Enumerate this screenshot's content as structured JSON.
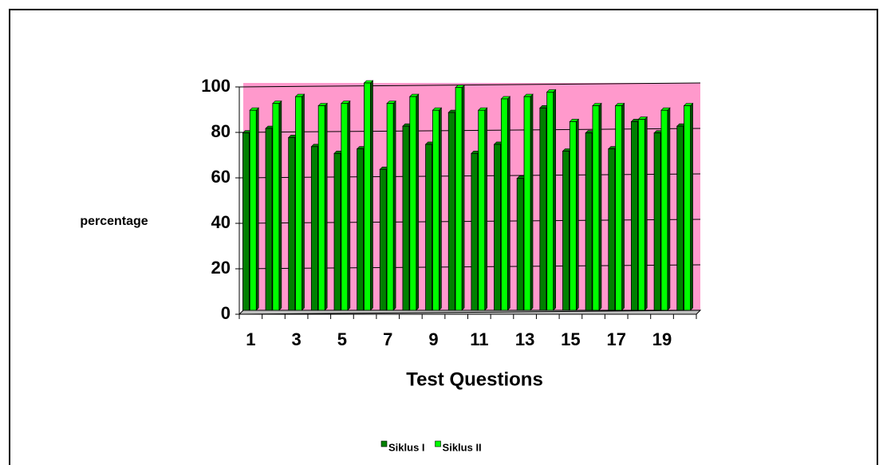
{
  "chart_data": {
    "type": "bar",
    "x_label": "Test Questions",
    "y_label": "percentage",
    "categories": [
      "1",
      null,
      "3",
      null,
      "5",
      null,
      "7",
      null,
      "9",
      null,
      "11",
      null,
      "13",
      null,
      "15",
      null,
      "17",
      null,
      "19",
      null
    ],
    "series": [
      {
        "name": "Siklus I",
        "color": "#008000",
        "values": [
          78,
          80,
          76,
          72,
          69,
          71,
          62,
          81,
          73,
          87,
          69,
          73,
          58,
          89,
          70,
          78,
          71,
          83,
          78,
          81
        ]
      },
      {
        "name": "Siklus II",
        "color": "#00ff00",
        "values": [
          88,
          91,
          94,
          90,
          91,
          100,
          91,
          94,
          88,
          98,
          88,
          93,
          94,
          96,
          83,
          90,
          90,
          84,
          88,
          90
        ]
      }
    ],
    "ylim": [
      0,
      100
    ],
    "yticks": [
      0,
      20,
      40,
      60,
      80,
      100
    ],
    "grid": true,
    "plot_background": "#ff99cc",
    "legend": "bottom"
  }
}
